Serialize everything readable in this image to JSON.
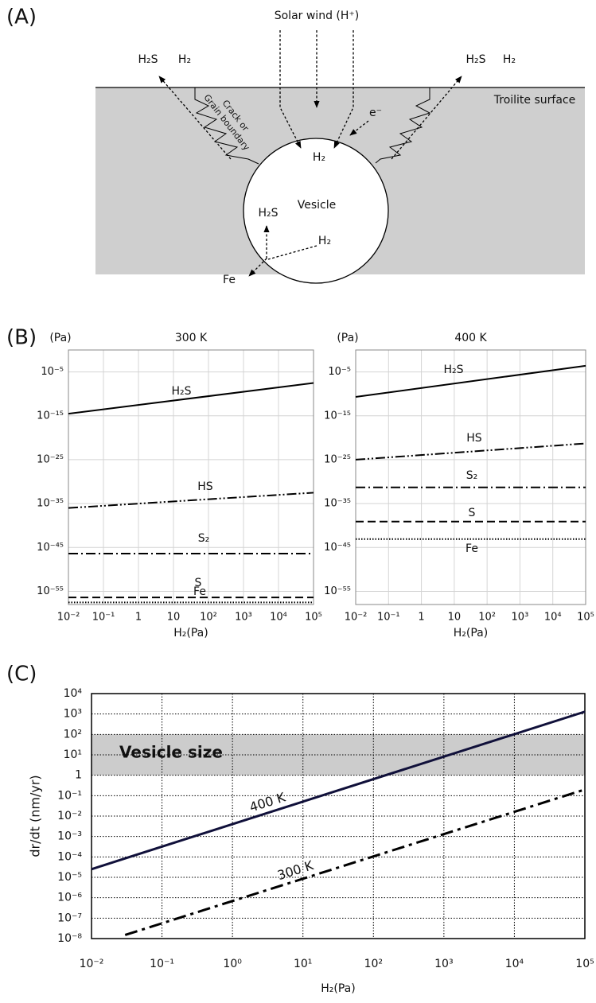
{
  "panel_labels": [
    "(A)",
    "(B)",
    "(C)"
  ],
  "panel_a": {
    "solar_wind": "Solar wind (H⁺)",
    "left_products": [
      "H₂S",
      "H₂"
    ],
    "right_products": [
      "H₂S",
      "H₂"
    ],
    "surface": "Troilite surface",
    "crack": [
      "Crack or",
      "Grain boundary"
    ],
    "electron": "e⁻",
    "vesicle_h2": "H₂",
    "vesicle": "Vesicle",
    "vesicle_h2s": "H₂S",
    "inner_h2": "H₂",
    "fe": "Fe"
  },
  "chart_data": [
    {
      "type": "line",
      "title": "300 K",
      "y_unit": "(Pa)",
      "x_label": "H₂(Pa)",
      "log_x": true,
      "log_y": true,
      "grid": true,
      "xlim": [
        0.01,
        100000
      ],
      "ylim": [
        1e-58,
        1
      ],
      "xticks": [
        {
          "value": 0.01,
          "label": "10⁻²"
        },
        {
          "value": 0.1,
          "label": "10⁻¹"
        },
        1,
        10,
        {
          "value": 100,
          "label": "10²"
        },
        {
          "value": 1000,
          "label": "10³"
        },
        {
          "value": 10000,
          "label": "10⁴"
        },
        {
          "value": 100000,
          "label": "10⁵"
        }
      ],
      "yticks": [
        {
          "value": 1e-05,
          "label": "10⁻⁵"
        },
        {
          "value": 1e-15,
          "label": "10⁻¹⁵"
        },
        {
          "value": 1e-25,
          "label": "10⁻²⁵"
        },
        {
          "value": 1e-35,
          "label": "10⁻³⁵"
        },
        {
          "value": 1e-45,
          "label": "10⁻⁴⁵"
        },
        {
          "value": 1e-55,
          "label": "10⁻⁵⁵"
        }
      ],
      "x": [
        0.01,
        100000
      ],
      "series": [
        {
          "name": "H₂S",
          "color": "#000000",
          "dash": "solid",
          "values": [
            3e-15,
            3e-08
          ]
        },
        {
          "name": "HS",
          "color": "#000000",
          "dash": "dash-dot-dot",
          "values": [
            1e-36,
            3e-33
          ]
        },
        {
          "name": "S₂",
          "color": "#000000",
          "dash": "dash-dot",
          "values": [
            4e-47,
            4e-47
          ]
        },
        {
          "name": "S",
          "color": "#000000",
          "dash": "dash",
          "values": [
            4e-57,
            4e-57
          ]
        },
        {
          "name": "Fe",
          "color": "#000000",
          "dash": "dot",
          "values": [
            3e-58,
            3e-58
          ]
        }
      ]
    },
    {
      "type": "line",
      "title": "400 K",
      "y_unit": "(Pa)",
      "x_label": "H₂(Pa)",
      "log_x": true,
      "log_y": true,
      "grid": true,
      "xlim": [
        0.01,
        100000
      ],
      "ylim": [
        1e-58,
        1
      ],
      "xticks": [
        {
          "value": 0.01,
          "label": "10⁻²"
        },
        {
          "value": 0.1,
          "label": "10⁻¹"
        },
        1,
        10,
        {
          "value": 100,
          "label": "10²"
        },
        {
          "value": 1000,
          "label": "10³"
        },
        {
          "value": 10000,
          "label": "10⁴"
        },
        {
          "value": 100000,
          "label": "10⁵"
        }
      ],
      "yticks": [
        {
          "value": 1e-05,
          "label": "10⁻⁵"
        },
        {
          "value": 1e-15,
          "label": "10⁻¹⁵"
        },
        {
          "value": 1e-25,
          "label": "10⁻²⁵"
        },
        {
          "value": 1e-35,
          "label": "10⁻³⁵"
        },
        {
          "value": 1e-45,
          "label": "10⁻⁴⁵"
        },
        {
          "value": 1e-55,
          "label": "10⁻⁵⁵"
        }
      ],
      "x": [
        0.01,
        100000
      ],
      "series": [
        {
          "name": "H₂S",
          "color": "#000000",
          "dash": "solid",
          "values": [
            2e-11,
            0.00025
          ]
        },
        {
          "name": "HS",
          "color": "#000000",
          "dash": "dash-dot-dot",
          "values": [
            1e-25,
            5e-22
          ]
        },
        {
          "name": "S₂",
          "color": "#000000",
          "dash": "dash-dot",
          "values": [
            5e-32,
            5e-32
          ]
        },
        {
          "name": "S",
          "color": "#000000",
          "dash": "dash",
          "values": [
            8e-40,
            8e-40
          ]
        },
        {
          "name": "Fe",
          "color": "#000000",
          "dash": "dot",
          "values": [
            8e-44,
            8e-44
          ]
        }
      ]
    },
    {
      "type": "line",
      "y_label": "dr/dt (nm/yr)",
      "x_label": "H₂(Pa)",
      "log_x": true,
      "log_y": true,
      "grid": true,
      "xlim": [
        0.01,
        100000
      ],
      "ylim": [
        1e-08,
        10000
      ],
      "xticks": [
        {
          "value": 0.01,
          "label": "10⁻²"
        },
        {
          "value": 0.1,
          "label": "10⁻¹"
        },
        {
          "value": 1,
          "label": "10⁰"
        },
        {
          "value": 10,
          "label": "10¹"
        },
        {
          "value": 100,
          "label": "10²"
        },
        {
          "value": 1000,
          "label": "10³"
        },
        {
          "value": 10000,
          "label": "10⁴"
        },
        {
          "value": 100000,
          "label": "10⁵"
        }
      ],
      "yticks": [
        {
          "value": 1e-08,
          "label": "10⁻⁸"
        },
        {
          "value": 1e-07,
          "label": "10⁻⁷"
        },
        {
          "value": 1e-06,
          "label": "10⁻⁶"
        },
        {
          "value": 1e-05,
          "label": "10⁻⁵"
        },
        {
          "value": 0.0001,
          "label": "10⁻⁴"
        },
        {
          "value": 0.001,
          "label": "10⁻³"
        },
        {
          "value": 0.01,
          "label": "10⁻²"
        },
        {
          "value": 0.1,
          "label": "10⁻¹"
        },
        1,
        {
          "value": 10,
          "label": "10¹"
        },
        {
          "value": 100,
          "label": "10²"
        },
        {
          "value": 1000,
          "label": "10³"
        },
        {
          "value": 10000,
          "label": "10⁴"
        }
      ],
      "band": {
        "from": 1,
        "to": 100,
        "label": "Vesicle size",
        "color": "#cccccc"
      },
      "x": [
        0.01,
        0.03,
        100000
      ],
      "series": [
        {
          "name": "400 K",
          "color": "#10103a",
          "dash": "solid",
          "values": [
            2.5e-05,
            8.5e-05,
            1300
          ]
        },
        {
          "name": "300 K",
          "color": "#000000",
          "dash": "long-dash-dot",
          "values": [
            null,
            1.5e-08,
            0.2
          ]
        }
      ]
    }
  ]
}
